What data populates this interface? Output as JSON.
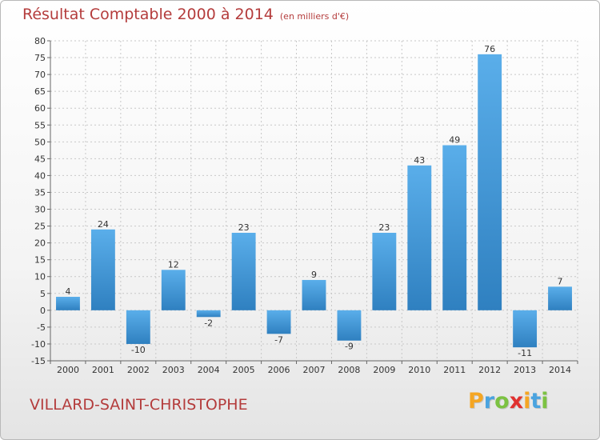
{
  "header": {
    "title": "Résultat Comptable 2000 à 2014",
    "unit": "(en milliers d'€)"
  },
  "footer": {
    "place": "VILLARD-SAINT-CHRISTOPHE",
    "logo_letters": [
      "P",
      "r",
      "o",
      "x",
      "i",
      "t",
      "i"
    ],
    "logo_colors": [
      "#f5a623",
      "#4aa3df",
      "#7cc242",
      "#e0312f",
      "#f5a623",
      "#4aa3df",
      "#7cc242"
    ]
  },
  "colors": {
    "bar_light": "#5aaeea",
    "bar_dark": "#2f80c0",
    "grid": "#c8c8c8",
    "text": "#333333",
    "accent": "#b43c3c"
  },
  "chart_data": {
    "type": "bar",
    "categories": [
      "2000",
      "2001",
      "2002",
      "2003",
      "2004",
      "2005",
      "2006",
      "2007",
      "2008",
      "2009",
      "2010",
      "2011",
      "2012",
      "2013",
      "2014"
    ],
    "values": [
      4,
      24,
      -10,
      12,
      -2,
      23,
      -7,
      9,
      -9,
      23,
      43,
      49,
      76,
      -11,
      7
    ],
    "ylim": [
      -15,
      80
    ],
    "yticks": [
      -15,
      -10,
      -5,
      0,
      5,
      10,
      15,
      20,
      25,
      30,
      35,
      40,
      45,
      50,
      55,
      60,
      65,
      70,
      75,
      80
    ],
    "grid": true,
    "data_labels": true
  }
}
